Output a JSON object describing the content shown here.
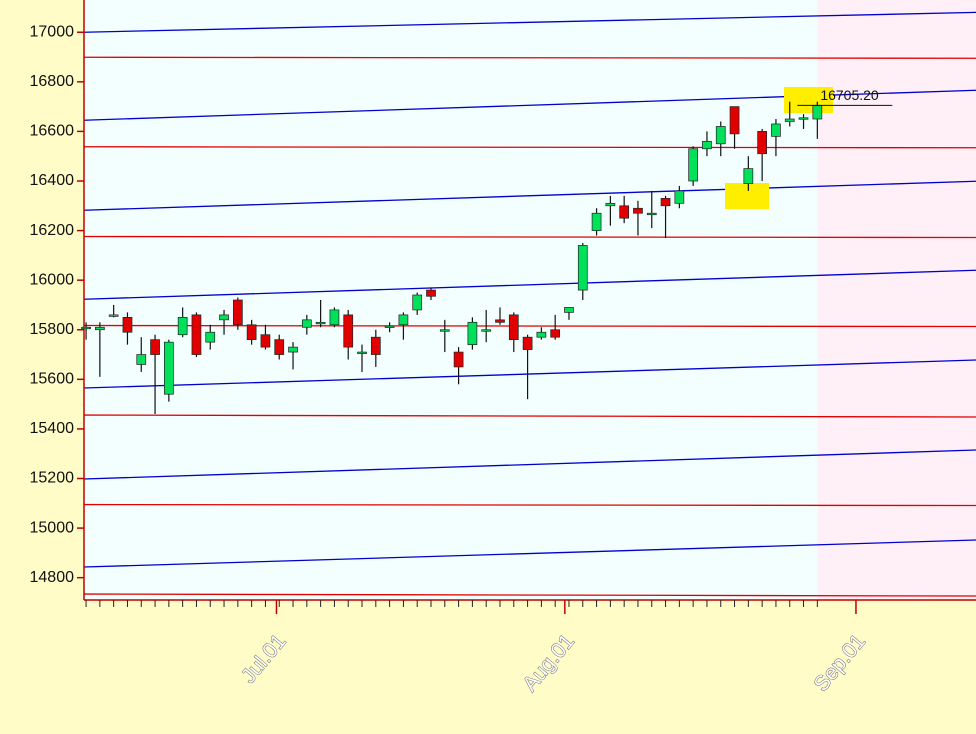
{
  "chart_data": {
    "type": "candlestick",
    "x": [
      0,
      1,
      2,
      3,
      4,
      5,
      6,
      7,
      8,
      9,
      10,
      11,
      12,
      13,
      14,
      15,
      16,
      17,
      18,
      19,
      20,
      21,
      22,
      23,
      24,
      25,
      26,
      27,
      28,
      29,
      30,
      31,
      32,
      33,
      34,
      35,
      36,
      37,
      38,
      39,
      40,
      41,
      42,
      43,
      44,
      45,
      46,
      47,
      48,
      49,
      50,
      51,
      52,
      53
    ],
    "open": [
      15810,
      15800,
      15860,
      15850,
      15660,
      15760,
      15540,
      15780,
      15860,
      15750,
      15840,
      15920,
      15820,
      15780,
      15760,
      15710,
      15810,
      15830,
      15820,
      15860,
      15710,
      15770,
      15810,
      15820,
      15880,
      15960,
      15800,
      15710,
      15740,
      15800,
      15840,
      15860,
      15770,
      15770,
      15800,
      15870,
      15960,
      16200,
      16300,
      16300,
      16290,
      16270,
      16330,
      16310,
      16400,
      16530,
      16550,
      16700,
      16390,
      16600,
      16580,
      16640,
      16650,
      16650
    ],
    "high": [
      15830,
      15830,
      15900,
      15870,
      15770,
      15780,
      15760,
      15890,
      15870,
      15820,
      15880,
      15930,
      15840,
      15820,
      15780,
      15750,
      15860,
      15920,
      15890,
      15880,
      15740,
      15800,
      15830,
      15870,
      15950,
      15970,
      15840,
      15730,
      15850,
      15880,
      15890,
      15870,
      15780,
      15810,
      15860,
      15890,
      16150,
      16290,
      16340,
      16340,
      16320,
      16360,
      16340,
      16380,
      16540,
      16600,
      16640,
      16700,
      16500,
      16610,
      16650,
      16720,
      16670,
      16720
    ],
    "low": [
      15760,
      15610,
      15850,
      15740,
      15630,
      15460,
      15510,
      15770,
      15690,
      15720,
      15780,
      15800,
      15740,
      15720,
      15680,
      15640,
      15780,
      15810,
      15810,
      15680,
      15630,
      15650,
      15790,
      15760,
      15860,
      15920,
      15710,
      15580,
      15720,
      15750,
      15820,
      15710,
      15520,
      15760,
      15760,
      15840,
      15920,
      16180,
      16220,
      16230,
      16180,
      16210,
      16170,
      16290,
      16380,
      16500,
      16500,
      16530,
      16360,
      16400,
      16500,
      16620,
      16610,
      16570
    ],
    "close": [
      15810,
      15810,
      15860,
      15790,
      15700,
      15700,
      15750,
      15850,
      15700,
      15790,
      15860,
      15820,
      15760,
      15730,
      15700,
      15730,
      15840,
      15830,
      15880,
      15730,
      15710,
      15700,
      15815,
      15860,
      15940,
      15935,
      15800,
      15650,
      15830,
      15800,
      15830,
      15760,
      15720,
      15790,
      15770,
      15890,
      16140,
      16270,
      16310,
      16250,
      16270,
      16270,
      16300,
      16360,
      16530,
      16560,
      16620,
      16590,
      16450,
      16510,
      16630,
      16650,
      16655,
      16705.2
    ],
    "up_color": "#00e05a",
    "down_color": "#e00000",
    "last_label": "16705.20",
    "xlim": [
      -0.15,
      64.5
    ],
    "xticks": [
      {
        "value": 13.8,
        "label": "Jul.01"
      },
      {
        "value": 34.7,
        "label": "Aug.01"
      },
      {
        "value": 55.8,
        "label": "Sep.01"
      }
    ],
    "ylim": [
      14710,
      17130
    ],
    "yticks": [
      14800,
      15000,
      15200,
      15400,
      15600,
      15800,
      16000,
      16200,
      16400,
      16600,
      16800,
      17000
    ],
    "reference_lines": [
      {
        "color": "#0000cc",
        "values": [
          17000,
          17080
        ]
      },
      {
        "color": "#0000cc",
        "values": [
          16645,
          16766
        ]
      },
      {
        "color": "#0000cc",
        "values": [
          16282,
          16399
        ]
      },
      {
        "color": "#0000cc",
        "values": [
          15923,
          16040
        ]
      },
      {
        "color": "#0000cc",
        "values": [
          15565,
          15678
        ]
      },
      {
        "color": "#0000cc",
        "values": [
          15198,
          15315
        ]
      },
      {
        "color": "#0000cc",
        "values": [
          14843,
          14952
        ]
      },
      {
        "color": "#e00000",
        "values": [
          16899,
          16895
        ]
      },
      {
        "color": "#e00000",
        "values": [
          16538,
          16534
        ]
      },
      {
        "color": "#e00000",
        "values": [
          16176,
          16172
        ]
      },
      {
        "color": "#e00000",
        "values": [
          15817,
          15813
        ]
      },
      {
        "color": "#e00000",
        "values": [
          15456,
          15448
        ]
      },
      {
        "color": "#e00000",
        "values": [
          15095,
          15091
        ]
      },
      {
        "color": "#e00000",
        "values": [
          14734,
          14726
        ]
      }
    ]
  }
}
